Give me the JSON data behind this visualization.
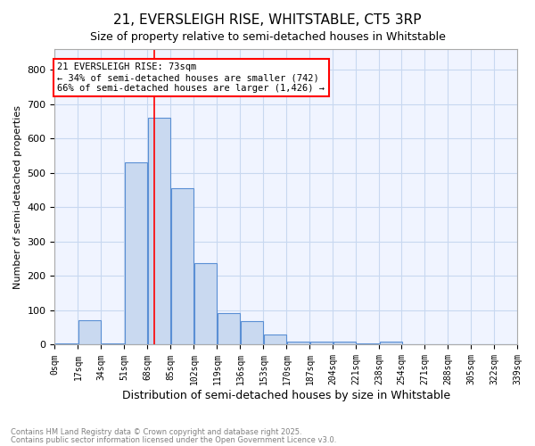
{
  "title1": "21, EVERSLEIGH RISE, WHITSTABLE, CT5 3RP",
  "title2": "Size of property relative to semi-detached houses in Whitstable",
  "xlabel": "Distribution of semi-detached houses by size in Whitstable",
  "ylabel": "Number of semi-detached properties",
  "bins": [
    0,
    17,
    34,
    51,
    68,
    85,
    102,
    119,
    136,
    153,
    170,
    187,
    204,
    221,
    238,
    254,
    271,
    288,
    305,
    322
  ],
  "counts": [
    5,
    70,
    5,
    530,
    660,
    455,
    238,
    93,
    68,
    30,
    8,
    10,
    8,
    5,
    8,
    0,
    0,
    0,
    0,
    0
  ],
  "bin_width": 17,
  "bar_facecolor": "#c9d9f0",
  "bar_edgecolor": "#5a8fd4",
  "grid_color": "#c8d8f0",
  "bg_color": "#f0f4ff",
  "vline_x": 73,
  "vline_color": "red",
  "annotation_line1": "21 EVERSLEIGH RISE: 73sqm",
  "annotation_line2": "← 34% of semi-detached houses are smaller (742)",
  "annotation_line3": "66% of semi-detached houses are larger (1,426) →",
  "footer1": "Contains HM Land Registry data © Crown copyright and database right 2025.",
  "footer2": "Contains public sector information licensed under the Open Government Licence v3.0.",
  "ylim": [
    0,
    860
  ],
  "yticks": [
    0,
    100,
    200,
    300,
    400,
    500,
    600,
    700,
    800
  ],
  "tick_labels": [
    "0sqm",
    "17sqm",
    "34sqm",
    "51sqm",
    "68sqm",
    "85sqm",
    "102sqm",
    "119sqm",
    "136sqm",
    "153sqm",
    "170sqm",
    "187sqm",
    "204sqm",
    "221sqm",
    "238sqm",
    "254sqm",
    "271sqm",
    "288sqm",
    "305sqm",
    "322sqm",
    "339sqm"
  ],
  "xtick_positions": [
    0,
    17,
    34,
    51,
    68,
    85,
    102,
    119,
    136,
    153,
    170,
    187,
    204,
    221,
    238,
    254,
    271,
    288,
    305,
    322,
    339
  ]
}
